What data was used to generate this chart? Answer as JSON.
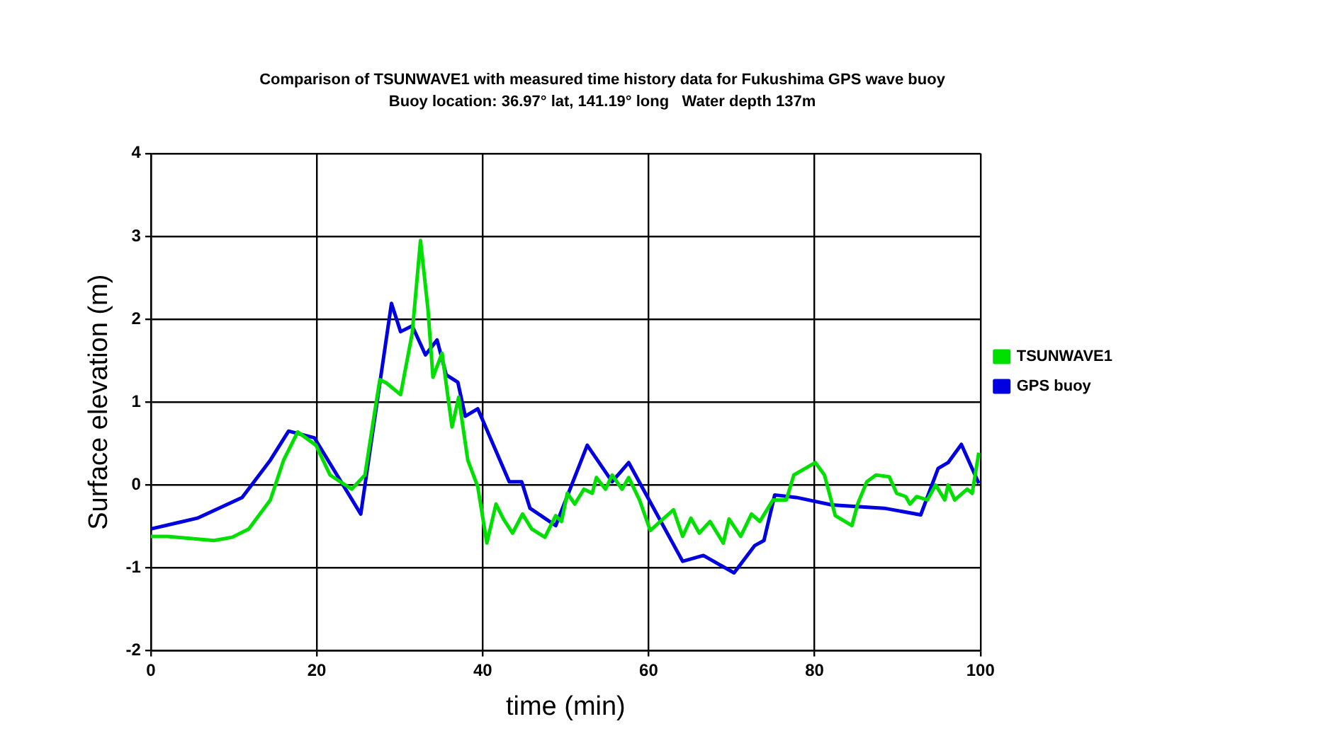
{
  "chart_data": {
    "type": "line",
    "title": "Comparison of TSUNWAVE1 with measured time history data for Fukushima GPS wave buoy",
    "subtitle": "Buoy location: 36.97° lat, 141.19° long   Water depth 137m",
    "xlabel": "time (min)",
    "ylabel": "Surface elevation (m)",
    "xlim": [
      0,
      100
    ],
    "xticks": [
      0,
      20,
      40,
      60,
      80,
      100
    ],
    "ylim": [
      -2,
      4
    ],
    "yticks": [
      -2,
      -1,
      0,
      1,
      2,
      3,
      4
    ],
    "grid": true,
    "legend": "right",
    "line_style": "solid",
    "series": [
      {
        "name": "TSUNWAVE1",
        "color": "#00e000",
        "x": [
          0,
          2,
          7.6,
          9.8,
          11.8,
          14.4,
          16,
          17.7,
          19.9,
          21.6,
          24.2,
          25.8,
          26.9,
          27.6,
          28.4,
          30.1,
          31.5,
          32.5,
          33.4,
          34,
          35.1,
          36.3,
          37.1,
          38.2,
          39.4,
          40.5,
          41.6,
          42.5,
          43.6,
          44.8,
          45.9,
          47.5,
          48.8,
          49.5,
          50.2,
          51.1,
          52.2,
          53.2,
          53.7,
          54.8,
          55.6,
          56.8,
          57.6,
          58.9,
          60.2,
          61.4,
          63,
          64.1,
          65.1,
          66.1,
          67.4,
          69,
          69.7,
          71.1,
          72.4,
          73.4,
          75,
          76.6,
          77.5,
          80.1,
          81.2,
          82.5,
          84.5,
          85.2,
          86.3,
          87.4,
          89,
          89.9,
          91,
          91.5,
          92.3,
          93.6,
          94.6,
          95.7,
          96.1,
          96.9,
          98.4,
          99,
          99.8
        ],
        "values": [
          -0.62,
          -0.62,
          -0.67,
          -0.63,
          -0.53,
          -0.18,
          0.3,
          0.64,
          0.48,
          0.12,
          -0.05,
          0.12,
          0.83,
          1.27,
          1.23,
          1.09,
          1.83,
          2.95,
          2.12,
          1.3,
          1.59,
          0.7,
          1.06,
          0.3,
          -0.02,
          -0.7,
          -0.23,
          -0.41,
          -0.58,
          -0.35,
          -0.53,
          -0.63,
          -0.37,
          -0.44,
          -0.1,
          -0.23,
          -0.05,
          -0.1,
          0.09,
          -0.05,
          0.12,
          -0.05,
          0.09,
          -0.18,
          -0.55,
          -0.44,
          -0.3,
          -0.62,
          -0.4,
          -0.58,
          -0.44,
          -0.7,
          -0.41,
          -0.62,
          -0.35,
          -0.44,
          -0.18,
          -0.18,
          0.12,
          0.27,
          0.12,
          -0.37,
          -0.49,
          -0.23,
          0.04,
          0.12,
          0.1,
          -0.1,
          -0.14,
          -0.23,
          -0.14,
          -0.18,
          0,
          -0.18,
          0,
          -0.18,
          -0.05,
          -0.1,
          0.39
        ]
      },
      {
        "name": "GPS buoy",
        "color": "#0000e0",
        "x": [
          0,
          5.6,
          11,
          14.4,
          16.6,
          19.7,
          25.3,
          29,
          30.1,
          31.5,
          33.1,
          34.5,
          35.6,
          37,
          37.9,
          39.4,
          43.2,
          44.7,
          45.7,
          48.8,
          52.6,
          55.6,
          57.6,
          64.1,
          66.6,
          70.3,
          72.8,
          73.9,
          75.2,
          77.8,
          82.1,
          88.4,
          92.8,
          94.9,
          96.1,
          97.7,
          99.8
        ],
        "values": [
          -0.53,
          -0.4,
          -0.15,
          0.3,
          0.65,
          0.57,
          -0.35,
          2.19,
          1.85,
          1.92,
          1.57,
          1.75,
          1.33,
          1.24,
          0.83,
          0.92,
          0.04,
          0.04,
          -0.28,
          -0.49,
          0.48,
          0.04,
          0.27,
          -0.92,
          -0.85,
          -1.06,
          -0.73,
          -0.67,
          -0.12,
          -0.15,
          -0.24,
          -0.28,
          -0.36,
          0.2,
          0.27,
          0.49,
          0.02
        ]
      }
    ]
  }
}
